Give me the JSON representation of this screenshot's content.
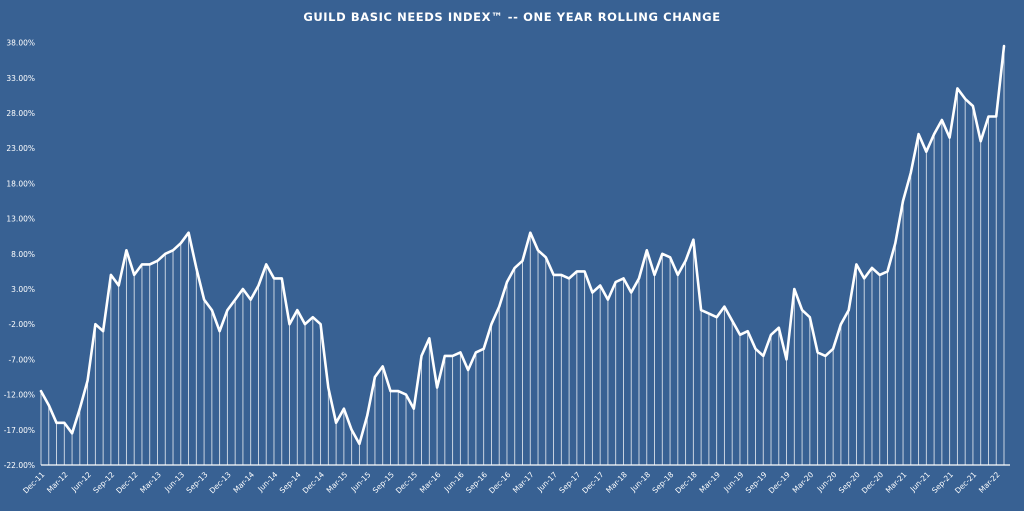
{
  "colors": {
    "background": "#386193",
    "line": "#ffffff",
    "drop_line": "#ffffff",
    "axis": "#ffffff"
  },
  "chart_data": {
    "type": "line",
    "title": "GUILD BASIC NEEDS INDEX™ -- ONE YEAR ROLLING CHANGE",
    "xlabel": "",
    "ylabel": "",
    "ylim": [
      -22,
      40.5
    ],
    "y_ticks": [
      "38.00%",
      "33.00%",
      "28.00%",
      "23.00%",
      "18.00%",
      "13.00%",
      "8.00%",
      "3.00%",
      "-2.00%",
      "-7.00%",
      "-12.00%",
      "-17.00%",
      "-22.00%"
    ],
    "y_tick_values": [
      38,
      33,
      28,
      23,
      18,
      13,
      8,
      3,
      -2,
      -7,
      -12,
      -17,
      -22
    ],
    "x_ticks": [
      "Dec-11",
      "Mar-12",
      "Jun-12",
      "Sep-12",
      "Dec-12",
      "Mar-13",
      "Jun-13",
      "Sep-13",
      "Dec-13",
      "Mar-14",
      "Jun-14",
      "Sep-14",
      "Dec-14",
      "Mar-15",
      "Jun-15",
      "Sep-15",
      "Dec-15",
      "Mar-16",
      "Jun-16",
      "Sep-16",
      "Dec-16",
      "Mar-17",
      "Jun-17",
      "Sep-17",
      "Dec-17",
      "Mar-18",
      "Jun-18",
      "Sep-18",
      "Dec-18",
      "Mar-19",
      "Jun-19",
      "Sep-19",
      "Dec-19",
      "Mar-20",
      "Jun-20",
      "Sep-20",
      "Dec-20",
      "Mar-21",
      "Jun-21",
      "Sep-21",
      "Dec-21",
      "Mar-22"
    ],
    "drop_lines": true,
    "grid": false,
    "series": [
      {
        "values": [
          -11.5,
          -13.5,
          -16,
          -16,
          -17.5,
          -14,
          -10,
          -2,
          -3,
          5,
          3.5,
          8.5,
          5,
          6.5,
          6.5,
          7,
          8,
          8.5,
          9.5,
          11,
          6,
          1.5,
          0,
          -3,
          0,
          1.5,
          3,
          1.5,
          3.5,
          6.5,
          4.5,
          4.5,
          -2,
          0,
          -2,
          -1,
          -2,
          -11,
          -16,
          -14,
          -17,
          -19,
          -15,
          -9.5,
          -8,
          -11.5,
          -11.5,
          -12,
          -14,
          -6.5,
          -4,
          -11,
          -6.5,
          -6.5,
          -6,
          -8.5,
          -6,
          -5.5,
          -2,
          0.5,
          4,
          6,
          7,
          11,
          8.5,
          7.5,
          5,
          5,
          4.5,
          5.5,
          5.5,
          2.5,
          3.5,
          1.5,
          4,
          4.5,
          2.5,
          4.5,
          8.5,
          5,
          8,
          7.5,
          5,
          7,
          10,
          0,
          -0.5,
          -1,
          0.5,
          -1.5,
          -3.5,
          -3,
          -5.5,
          -6.5,
          -3.5,
          -2.5,
          -7,
          3,
          0,
          -1,
          -6,
          -6.5,
          -5.5,
          -2,
          0,
          6.5,
          4.5,
          6,
          5,
          5.5,
          9.5,
          15.5,
          19.5,
          25,
          22.5,
          25,
          27,
          24.5,
          31.5,
          30,
          29,
          24,
          27.5,
          27.5,
          37.5
        ]
      }
    ]
  }
}
